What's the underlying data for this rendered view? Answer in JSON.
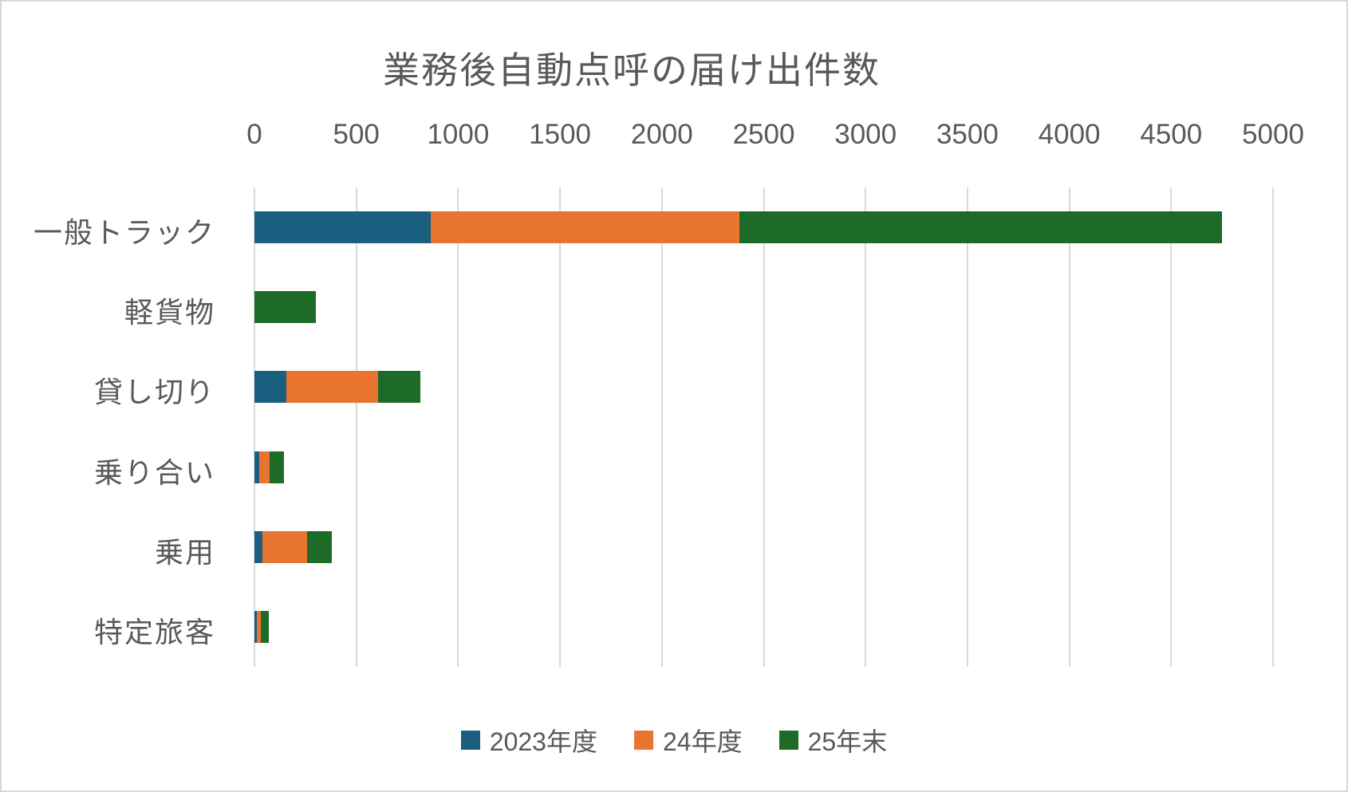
{
  "title": "業務後自動点呼の届け出件数",
  "colors": {
    "grid": "#d9d9d9",
    "text": "#595959",
    "series_2023": "#1a5e80",
    "series_24": "#e8742f",
    "series_25": "#1e6b27"
  },
  "chart_data": {
    "type": "bar",
    "orientation": "horizontal",
    "stacked": true,
    "title": "業務後自動点呼の届け出件数",
    "categories": [
      "一般トラック",
      "軽貨物",
      "貸し切り",
      "乗り合い",
      "乗用",
      "特定旅客"
    ],
    "series": [
      {
        "name": "2023年度",
        "color": "#1a5e80",
        "values": [
          865,
          0,
          155,
          25,
          40,
          10
        ]
      },
      {
        "name": "24年度",
        "color": "#e8742f",
        "values": [
          1515,
          0,
          450,
          50,
          220,
          20
        ]
      },
      {
        "name": "25年末",
        "color": "#1e6b27",
        "values": [
          2370,
          300,
          210,
          70,
          120,
          40
        ]
      }
    ],
    "totals": [
      4750,
      300,
      815,
      145,
      380,
      70
    ],
    "x_axis": {
      "min": 0,
      "max": 5000,
      "tick_step": 500,
      "ticks": [
        0,
        500,
        1000,
        1500,
        2000,
        2500,
        3000,
        3500,
        4000,
        4500,
        5000
      ],
      "position": "top"
    },
    "ylabel": "",
    "xlabel": "",
    "grid": true,
    "legend_position": "bottom"
  }
}
